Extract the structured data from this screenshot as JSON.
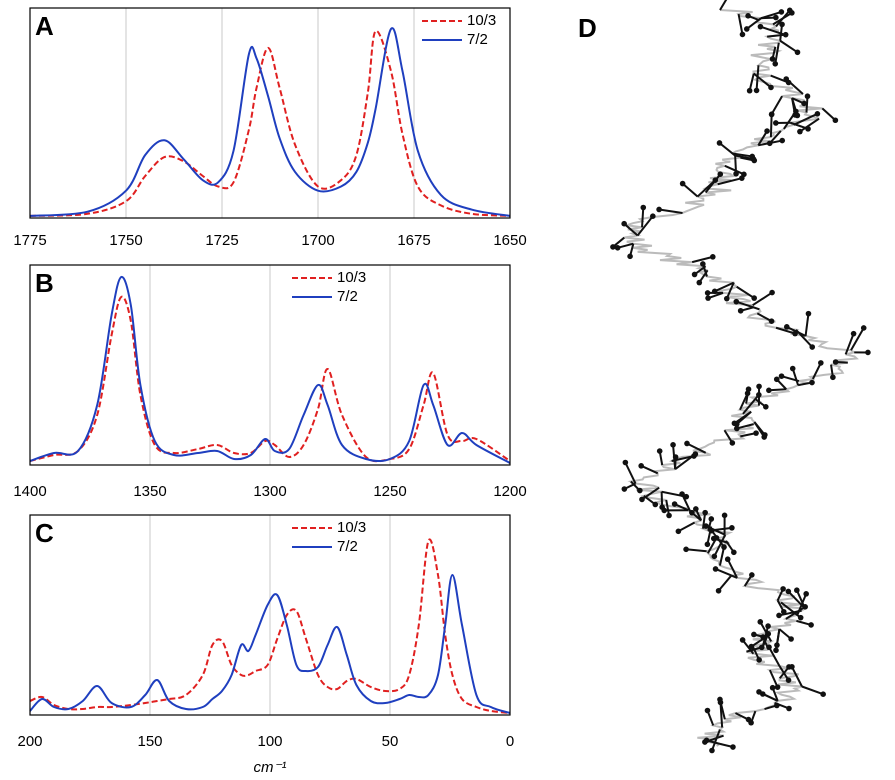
{
  "chart_data": [
    {
      "type": "line",
      "panel_label": "A",
      "legend": "upper right",
      "grid": true,
      "xlim": [
        1775,
        1650
      ],
      "xticks": [
        1775,
        1750,
        1725,
        1700,
        1675,
        1650
      ],
      "ylim": [
        0,
        1
      ],
      "x": [
        1775,
        1760,
        1750,
        1745,
        1740,
        1735,
        1730,
        1726,
        1722,
        1718,
        1716,
        1713,
        1710,
        1706,
        1700,
        1694,
        1690,
        1687,
        1685,
        1681,
        1678,
        1674,
        1668,
        1660,
        1650
      ],
      "series": [
        {
          "name": "10/3",
          "color": "#e02020",
          "linestyle": "dashed",
          "values": [
            0.01,
            0.02,
            0.08,
            0.2,
            0.29,
            0.27,
            0.2,
            0.15,
            0.17,
            0.42,
            0.62,
            0.81,
            0.62,
            0.35,
            0.15,
            0.18,
            0.3,
            0.6,
            0.89,
            0.7,
            0.4,
            0.15,
            0.06,
            0.02,
            0.01
          ]
        },
        {
          "name": "7/2",
          "color": "#1f3fbf",
          "linestyle": "solid",
          "values": [
            0.01,
            0.03,
            0.13,
            0.3,
            0.37,
            0.28,
            0.18,
            0.17,
            0.32,
            0.78,
            0.76,
            0.58,
            0.38,
            0.22,
            0.13,
            0.15,
            0.22,
            0.36,
            0.52,
            0.9,
            0.7,
            0.32,
            0.11,
            0.04,
            0.01
          ]
        }
      ]
    },
    {
      "type": "line",
      "panel_label": "B",
      "legend": "upper center",
      "grid": true,
      "xlim": [
        1400,
        1200
      ],
      "xticks": [
        1400,
        1350,
        1300,
        1250,
        1200
      ],
      "ylim": [
        0,
        1
      ],
      "x": [
        1400,
        1390,
        1380,
        1372,
        1366,
        1362,
        1358,
        1354,
        1348,
        1340,
        1330,
        1322,
        1315,
        1308,
        1302,
        1298,
        1292,
        1286,
        1280,
        1276,
        1270,
        1260,
        1250,
        1242,
        1236,
        1232,
        1226,
        1220,
        1214,
        1200
      ],
      "series": [
        {
          "name": "10/3",
          "color": "#e02020",
          "linestyle": "dashed",
          "values": [
            0.02,
            0.05,
            0.07,
            0.25,
            0.65,
            0.84,
            0.72,
            0.35,
            0.1,
            0.06,
            0.08,
            0.1,
            0.06,
            0.06,
            0.12,
            0.1,
            0.04,
            0.1,
            0.28,
            0.48,
            0.25,
            0.04,
            0.03,
            0.08,
            0.3,
            0.46,
            0.15,
            0.12,
            0.13,
            0.02
          ]
        },
        {
          "name": "7/2",
          "color": "#1f3fbf",
          "linestyle": "solid",
          "values": [
            0.02,
            0.06,
            0.07,
            0.3,
            0.75,
            0.94,
            0.8,
            0.4,
            0.12,
            0.05,
            0.06,
            0.07,
            0.03,
            0.05,
            0.13,
            0.07,
            0.08,
            0.25,
            0.4,
            0.3,
            0.1,
            0.03,
            0.03,
            0.12,
            0.4,
            0.3,
            0.1,
            0.16,
            0.1,
            0.01
          ]
        }
      ]
    },
    {
      "type": "line",
      "panel_label": "C",
      "legend": "upper center",
      "grid": true,
      "x_label": "cm⁻¹",
      "xlim": [
        200,
        0
      ],
      "xticks": [
        200,
        150,
        100,
        50,
        0
      ],
      "ylim": [
        0,
        1
      ],
      "x": [
        200,
        195,
        190,
        184,
        178,
        172,
        166,
        158,
        152,
        147,
        142,
        135,
        128,
        124,
        120,
        116,
        112,
        109,
        106,
        101,
        97,
        93,
        89,
        85,
        80,
        76,
        72,
        68,
        64,
        58,
        52,
        46,
        42,
        38,
        34,
        30,
        27,
        24,
        20,
        14,
        8,
        0
      ],
      "series": [
        {
          "name": "10/3",
          "color": "#e02020",
          "linestyle": "dashed",
          "values": [
            0.07,
            0.09,
            0.05,
            0.03,
            0.03,
            0.04,
            0.04,
            0.05,
            0.06,
            0.07,
            0.08,
            0.1,
            0.2,
            0.35,
            0.37,
            0.25,
            0.2,
            0.2,
            0.22,
            0.25,
            0.38,
            0.5,
            0.52,
            0.38,
            0.2,
            0.14,
            0.13,
            0.17,
            0.18,
            0.14,
            0.12,
            0.13,
            0.2,
            0.45,
            0.87,
            0.7,
            0.4,
            0.2,
            0.08,
            0.04,
            0.02,
            0.01
          ]
        },
        {
          "name": "7/2",
          "color": "#1f3fbf",
          "linestyle": "solid",
          "values": [
            0.02,
            0.08,
            0.04,
            0.03,
            0.07,
            0.145,
            0.06,
            0.04,
            0.1,
            0.175,
            0.07,
            0.03,
            0.04,
            0.08,
            0.12,
            0.2,
            0.35,
            0.32,
            0.4,
            0.55,
            0.6,
            0.45,
            0.25,
            0.22,
            0.24,
            0.35,
            0.44,
            0.3,
            0.15,
            0.07,
            0.06,
            0.08,
            0.1,
            0.09,
            0.1,
            0.2,
            0.45,
            0.7,
            0.45,
            0.1,
            0.04,
            0.01
          ]
        }
      ]
    }
  ],
  "panel_d": {
    "label": "D"
  }
}
